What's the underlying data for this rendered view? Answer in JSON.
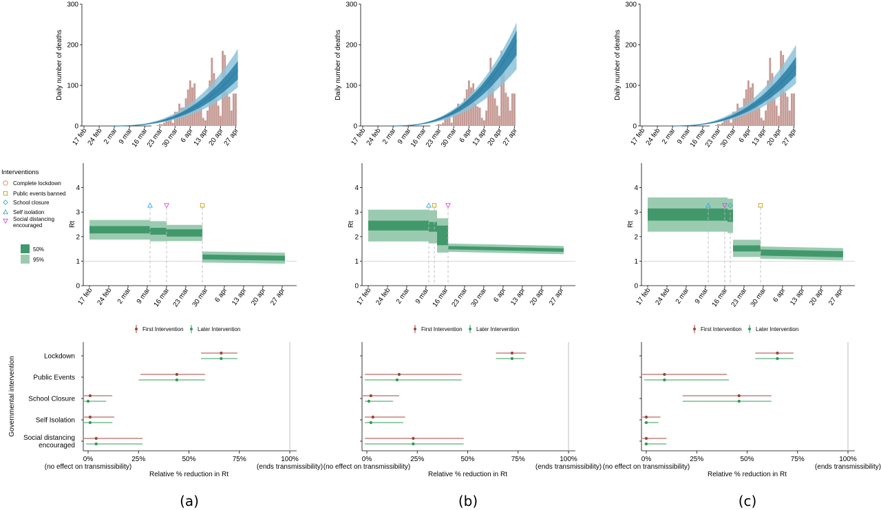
{
  "legend": {
    "interventions_title": "Interventions",
    "interventions": [
      {
        "label": "Complete lockdown",
        "symbol": "circle",
        "color": "#e8756b"
      },
      {
        "label": "Public events banned",
        "symbol": "square",
        "color": "#c4a000"
      },
      {
        "label": "School closure",
        "symbol": "diamond",
        "color": "#29b7a8"
      },
      {
        "label": "Self isolation",
        "symbol": "triangle-up",
        "color": "#2aa5e0"
      },
      {
        "label": "Social distancing encouraged",
        "symbol": "triangle-down",
        "color": "#e040e0"
      }
    ],
    "bands": [
      {
        "label": "50%",
        "color": "#41996b"
      },
      {
        "label": "95%",
        "color": "#9acbb0"
      }
    ],
    "effect_series": [
      {
        "label": "First Intervention",
        "color": "#a0443a"
      },
      {
        "label": "Later Intervention",
        "color": "#2f9b5a"
      }
    ]
  },
  "colors": {
    "bars": "#c69b95",
    "death_50": "#2a7ea5",
    "death_95": "#8cc3db",
    "rt_50": "#41996b",
    "rt_95": "#9acbb0"
  },
  "chart_data": [
    {
      "panel": "a",
      "caption": "(a)",
      "deaths": {
        "type": "bar",
        "ylabel": "Daily number of deaths",
        "ylim": [
          0,
          300
        ],
        "yticks": [
          "0",
          "100",
          "200",
          "300"
        ],
        "xticks": [
          "17 feb",
          "24 feb",
          "2 mar",
          "9 mar",
          "16 mar",
          "23 mar",
          "30 mar",
          "6 apr",
          "13 apr",
          "20 apr",
          "27 apr"
        ],
        "bars_start": "2020-03-22",
        "bars": [
          2,
          5,
          4,
          8,
          18,
          22,
          24,
          8,
          35,
          35,
          55,
          45,
          46,
          68,
          90,
          112,
          95,
          105,
          55,
          48,
          45,
          20,
          14,
          38,
          112,
          168,
          130,
          68,
          50,
          25,
          185,
          175,
          82,
          72,
          38,
          80,
          80
        ],
        "fit_start": "2020-03-01",
        "fit_median_end": 137,
        "fit_50_end": [
          115,
          160
        ],
        "fit_95_end": [
          95,
          190
        ]
      },
      "rt": {
        "type": "area",
        "ylabel": "Rt",
        "ylim": [
          0,
          5
        ],
        "yticks": [
          "0",
          "1",
          "2",
          "3",
          "4"
        ],
        "xticks": [
          "17 feb",
          "24 feb",
          "2 mar",
          "9 mar",
          "16 mar",
          "23 mar",
          "30 mar",
          "6 apr",
          "13 apr",
          "20 apr",
          "27 apr"
        ],
        "segments": [
          {
            "start": "2020-02-17",
            "end": "2020-03-10",
            "median": 2.28,
            "p50": [
              2.13,
              2.43
            ],
            "p95": [
              1.95,
              2.75
            ]
          },
          {
            "start": "2020-03-10",
            "end": "2020-03-16",
            "median": 2.22,
            "p50": [
              2.08,
              2.36
            ],
            "p95": [
              1.9,
              2.72
            ]
          },
          {
            "start": "2020-03-16",
            "end": "2020-03-29",
            "median": 2.15,
            "p50": [
              2.0,
              2.3
            ],
            "p95": [
              1.82,
              2.48
            ]
          },
          {
            "start": "2020-03-29",
            "end": "2020-04-28",
            "median_start": 1.17,
            "median_end": 1.12,
            "p50": [
              1.05,
              1.25
            ],
            "p95": [
              0.95,
              1.4
            ]
          }
        ],
        "markers": [
          {
            "date": "2020-03-10",
            "symbol": "triangle-up",
            "color": "#2aa5e0"
          },
          {
            "date": "2020-03-16",
            "symbol": "triangle-down",
            "color": "#e040e0"
          },
          {
            "date": "2020-03-29",
            "symbol": "square",
            "color": "#c4a000"
          }
        ]
      },
      "effects": {
        "type": "scatter",
        "ylabel": "Governmental intervention",
        "xlabel": "Relative % reduction in Rt",
        "xlim": [
          0,
          100
        ],
        "xticks": [
          "0%",
          "25%",
          "50%",
          "75%",
          "100%"
        ],
        "x_note_left": "(no effect on transmissibility)",
        "x_note_right": "(ends transmissibility)",
        "categories": [
          "Lockdown",
          "Public Events",
          "School Closure",
          "Self Isolation",
          "Social distancing encouraged"
        ],
        "first": [
          {
            "est": 66,
            "lo": 56,
            "hi": 74
          },
          {
            "est": 44,
            "lo": 26,
            "hi": 58
          },
          {
            "est": 1,
            "lo": -2,
            "hi": 12
          },
          {
            "est": 1,
            "lo": -2,
            "hi": 13
          },
          {
            "est": 4,
            "lo": -2,
            "hi": 27
          }
        ],
        "later": [
          {
            "est": 66,
            "lo": 56,
            "hi": 74
          },
          {
            "est": 44,
            "lo": 25,
            "hi": 58
          },
          {
            "est": 0,
            "lo": -2,
            "hi": 9
          },
          {
            "est": 1,
            "lo": -2,
            "hi": 12
          },
          {
            "est": 4,
            "lo": -1,
            "hi": 27
          }
        ]
      }
    },
    {
      "panel": "b",
      "caption": "(b)",
      "deaths": {
        "type": "bar",
        "ylabel": "Daily number of deaths",
        "ylim": [
          0,
          300
        ],
        "yticks": [
          "0",
          "100",
          "200",
          "300"
        ],
        "xticks": [
          "17 feb",
          "24 feb",
          "2 mar",
          "9 mar",
          "16 mar",
          "23 mar",
          "30 mar",
          "6 apr",
          "13 apr",
          "20 apr",
          "27 apr"
        ],
        "bars_start": "2020-03-22",
        "bars": [
          2,
          5,
          4,
          8,
          18,
          22,
          24,
          8,
          35,
          35,
          55,
          45,
          46,
          68,
          90,
          112,
          95,
          105,
          55,
          48,
          45,
          20,
          14,
          38,
          112,
          168,
          130,
          68,
          50,
          25,
          185,
          175,
          82,
          72,
          38,
          80,
          80
        ],
        "fit_start": "2020-03-01",
        "fit_median_end": 210,
        "fit_50_end": [
          175,
          235
        ],
        "fit_95_end": [
          140,
          255
        ]
      },
      "rt": {
        "type": "area",
        "ylabel": "Rt",
        "ylim": [
          0,
          5
        ],
        "yticks": [
          "0",
          "1",
          "2",
          "3",
          "4"
        ],
        "xticks": [
          "17 feb",
          "24 feb",
          "2 mar",
          "9 mar",
          "16 mar",
          "23 mar",
          "30 mar",
          "6 apr",
          "13 apr",
          "20 apr",
          "27 apr"
        ],
        "segments": [
          {
            "start": "2020-02-17",
            "end": "2020-03-10",
            "median": 2.45,
            "p50": [
              2.25,
              2.65
            ],
            "p95": [
              2.0,
              3.3
            ]
          },
          {
            "start": "2020-03-10",
            "end": "2020-03-13",
            "median": 2.4,
            "p50": [
              2.2,
              2.6
            ],
            "p95": [
              1.95,
              3.3
            ]
          },
          {
            "start": "2020-03-13",
            "end": "2020-03-17",
            "median": 2.05,
            "p50": [
              1.65,
              2.45
            ],
            "p95": [
              1.5,
              2.9
            ]
          },
          {
            "start": "2020-03-17",
            "end": "2020-04-28",
            "median_start": 1.55,
            "median_end": 1.45,
            "p50": [
              1.48,
              1.62
            ],
            "p95": [
              1.38,
              1.72
            ]
          }
        ],
        "markers": [
          {
            "date": "2020-03-10",
            "symbol": "triangle-up",
            "color": "#2aa5e0"
          },
          {
            "date": "2020-03-12",
            "symbol": "square",
            "color": "#c4a000"
          },
          {
            "date": "2020-03-17",
            "symbol": "triangle-down",
            "color": "#e040e0"
          }
        ]
      },
      "effects": {
        "type": "scatter",
        "ylabel": "Governmental intervention",
        "xlabel": "Relative % reduction in Rt",
        "xlim": [
          0,
          100
        ],
        "xticks": [
          "0%",
          "25%",
          "50%",
          "75%",
          "100%"
        ],
        "x_note_left": "(no effect on transmissibility)",
        "x_note_right": "(ends transmissibility)",
        "categories": [
          "Lockdown",
          "Public Events",
          "School Closure",
          "Self Isolation",
          "Social distancing encouraged"
        ],
        "first": [
          {
            "est": 72,
            "lo": 64,
            "hi": 79
          },
          {
            "est": 16,
            "lo": -1,
            "hi": 47
          },
          {
            "est": 2,
            "lo": -2,
            "hi": 16
          },
          {
            "est": 3,
            "lo": -1,
            "hi": 19
          },
          {
            "est": 23,
            "lo": -1,
            "hi": 48
          }
        ],
        "later": [
          {
            "est": 72,
            "lo": 64,
            "hi": 78
          },
          {
            "est": 15,
            "lo": -1,
            "hi": 47
          },
          {
            "est": 1,
            "lo": -1,
            "hi": 13
          },
          {
            "est": 2,
            "lo": -1,
            "hi": 18
          },
          {
            "est": 23,
            "lo": -1,
            "hi": 48
          }
        ]
      }
    },
    {
      "panel": "c",
      "caption": "(c)",
      "deaths": {
        "type": "bar",
        "ylabel": "Daily number of deaths",
        "ylim": [
          0,
          300
        ],
        "yticks": [
          "0",
          "100",
          "200",
          "300"
        ],
        "xticks": [
          "17 feb",
          "24 feb",
          "2 mar",
          "9 mar",
          "16 mar",
          "23 mar",
          "30 mar",
          "6 apr",
          "13 apr",
          "20 apr",
          "27 apr"
        ],
        "bars_start": "2020-03-22",
        "bars": [
          2,
          5,
          4,
          8,
          18,
          22,
          24,
          8,
          35,
          35,
          55,
          45,
          46,
          68,
          90,
          112,
          95,
          105,
          55,
          48,
          45,
          20,
          14,
          38,
          112,
          168,
          130,
          68,
          50,
          25,
          185,
          175,
          82,
          72,
          38,
          80,
          80
        ],
        "fit_start": "2020-03-01",
        "fit_median_end": 147,
        "fit_50_end": [
          125,
          170
        ],
        "fit_95_end": [
          105,
          200
        ]
      },
      "rt": {
        "type": "area",
        "ylabel": "Rt",
        "ylim": [
          0,
          5
        ],
        "yticks": [
          "0",
          "1",
          "2",
          "3",
          "4"
        ],
        "xticks": [
          "17 feb",
          "24 feb",
          "2 mar",
          "9 mar",
          "16 mar",
          "23 mar",
          "30 mar",
          "6 apr",
          "13 apr",
          "20 apr",
          "27 apr"
        ],
        "segments": [
          {
            "start": "2020-02-17",
            "end": "2020-03-17",
            "median": 2.9,
            "p50": [
              2.65,
              3.15
            ],
            "p95": [
              2.25,
              3.65
            ]
          },
          {
            "start": "2020-03-17",
            "end": "2020-03-19",
            "median": 2.85,
            "p50": [
              2.6,
              3.1
            ],
            "p95": [
              2.2,
              3.6
            ]
          },
          {
            "start": "2020-03-19",
            "end": "2020-03-29",
            "median": 1.52,
            "p50": [
              1.4,
              1.65
            ],
            "p95": [
              1.3,
              2.0
            ]
          },
          {
            "start": "2020-03-29",
            "end": "2020-04-28",
            "median_start": 1.35,
            "median_end": 1.28,
            "p50": [
              1.2,
              1.45
            ],
            "p95": [
              1.1,
              1.6
            ]
          }
        ],
        "markers": [
          {
            "date": "2020-03-10",
            "symbol": "triangle-up",
            "color": "#2aa5e0"
          },
          {
            "date": "2020-03-16",
            "symbol": "triangle-down",
            "color": "#e040e0"
          },
          {
            "date": "2020-03-18",
            "symbol": "diamond",
            "color": "#29b7a8"
          },
          {
            "date": "2020-03-29",
            "symbol": "square",
            "color": "#c4a000"
          }
        ]
      },
      "effects": {
        "type": "scatter",
        "ylabel": "Governmental intervention",
        "xlabel": "Relative % reduction in Rt",
        "xlim": [
          0,
          100
        ],
        "xticks": [
          "0%",
          "25%",
          "50%",
          "75%",
          "100%"
        ],
        "x_note_left": "(no effect on transmissibility)",
        "x_note_right": "(ends transmissibility)",
        "categories": [
          "Lockdown",
          "Public Events",
          "School Closure",
          "Self Isolation",
          "Social distancing encouraged"
        ],
        "first": [
          {
            "est": 65,
            "lo": 54,
            "hi": 73
          },
          {
            "est": 9,
            "lo": -2,
            "hi": 40
          },
          {
            "est": 46,
            "lo": 18,
            "hi": 62
          },
          {
            "est": 0,
            "lo": -2,
            "hi": 7
          },
          {
            "est": 0,
            "lo": -2,
            "hi": 10
          }
        ],
        "later": [
          {
            "est": 65,
            "lo": 54,
            "hi": 73
          },
          {
            "est": 9,
            "lo": -1,
            "hi": 41
          },
          {
            "est": 46,
            "lo": 18,
            "hi": 62
          },
          {
            "est": 0,
            "lo": -1,
            "hi": 6
          },
          {
            "est": 0,
            "lo": -1,
            "hi": 10
          }
        ]
      }
    }
  ]
}
